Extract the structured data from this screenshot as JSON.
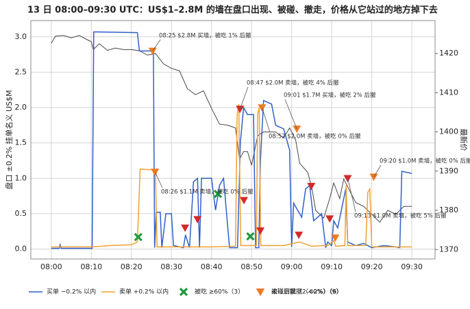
{
  "chart_data": {
    "type": "line",
    "title": "13 日 08:00–09:30 UTC：US$1–2.8M 的墙在盘口出现、被碰、撤走，价格从它站过的地方掉下去",
    "y_label": "盘口 ±0.2% 挂单名义 US$M",
    "y2_label": "最新价",
    "grid": true,
    "xlim": [
      -5.1,
      95.8
    ],
    "xticks": [
      {
        "value": 0,
        "label": "08:00"
      },
      {
        "value": 10,
        "label": "08:10"
      },
      {
        "value": 20,
        "label": "08:20"
      },
      {
        "value": 30,
        "label": "08:30"
      },
      {
        "value": 40,
        "label": "08:40"
      },
      {
        "value": 50,
        "label": "08:50"
      },
      {
        "value": 60,
        "label": "09:00"
      },
      {
        "value": 70,
        "label": "09:10"
      },
      {
        "value": 80,
        "label": "09:20"
      },
      {
        "value": 90,
        "label": "09:30"
      }
    ],
    "ylim": [
      -0.14,
      3.23
    ],
    "yticks": [
      {
        "value": 0,
        "label": "0.0"
      },
      {
        "value": 0.5,
        "label": "0.5"
      },
      {
        "value": 1,
        "label": "1.0"
      },
      {
        "value": 1.5,
        "label": "1.5"
      },
      {
        "value": 2,
        "label": "2.0"
      },
      {
        "value": 2.5,
        "label": "2.5"
      },
      {
        "value": 3,
        "label": "3.0"
      }
    ],
    "y2lim": [
      1367.6,
      1428.4
    ],
    "y2ticks": [
      1370,
      1380,
      1390,
      1400,
      1410,
      1420
    ],
    "series": [
      {
        "name": "买单 −0.2% 以内",
        "type": "line",
        "color": "#2f5fc8",
        "x": [
          0,
          2,
          2.2,
          2.5,
          10.2,
          10.6,
          21.5,
          22,
          25.5,
          25.8,
          26.2,
          27.2,
          27.6,
          28.6,
          30,
          30.5,
          33,
          33.5,
          34.5,
          35.5,
          36.5,
          37,
          37.5,
          40,
          41,
          42,
          43,
          44.5,
          46.5,
          47.2,
          48,
          49,
          50.5,
          51,
          51.8,
          52.2,
          53,
          55,
          56,
          58,
          59.5,
          60,
          60.5,
          61,
          62.5,
          63.5,
          64.5,
          65.5,
          67.5,
          68.5,
          69,
          70,
          70.5,
          71.5,
          73.5,
          74,
          76,
          78,
          80,
          83,
          86,
          87,
          87.5,
          90
        ],
        "values": [
          0.01,
          0.01,
          0.06,
          0.01,
          0.01,
          3.07,
          3.06,
          2.8,
          2.8,
          0.02,
          0.52,
          0.52,
          0.02,
          0.5,
          0.5,
          0.05,
          0.02,
          0.2,
          0.02,
          0.95,
          1.0,
          0.02,
          1.0,
          1.0,
          0.55,
          0.9,
          1.0,
          0.02,
          0.02,
          1.5,
          2.0,
          1.9,
          1.9,
          0.02,
          0.02,
          1.25,
          2.1,
          2.05,
          1.75,
          1.7,
          1.4,
          0.03,
          0.65,
          0.6,
          0.45,
          0.85,
          0.9,
          0.4,
          0.5,
          0.02,
          0.1,
          0.05,
          0.4,
          0.3,
          0.85,
          0.1,
          0.05,
          0.08,
          0.02,
          0.05,
          0.03,
          0.02,
          1.1,
          1.07
        ]
      },
      {
        "name": "卖单 +0.2% 以内",
        "type": "line",
        "color": "#f0a030",
        "x": [
          0,
          10,
          15,
          20,
          21.5,
          22.2,
          25.5,
          26,
          26.4,
          35,
          40,
          46,
          46.4,
          46.8,
          47.3,
          51.2,
          51.5,
          51.9,
          52.3,
          58,
          62,
          65,
          69,
          70.5,
          71,
          73.3,
          73.6,
          74,
          78.5,
          79,
          79.5,
          80,
          90
        ],
        "values": [
          0.03,
          0.03,
          0.05,
          0.06,
          0.1,
          1.13,
          1.12,
          1.08,
          0.03,
          0.03,
          0.03,
          0.04,
          1.9,
          2.05,
          0.05,
          0.05,
          1.9,
          2.0,
          0.05,
          0.05,
          0.1,
          0.04,
          0.05,
          0.12,
          0.04,
          0.05,
          0.9,
          0.05,
          0.05,
          0.8,
          0.85,
          0.03,
          0.03
        ]
      },
      {
        "name": "最新价",
        "type": "line",
        "color": "#444444",
        "axis": "y2",
        "x": [
          0,
          1,
          3,
          5,
          7,
          9,
          10,
          10.5,
          12,
          14,
          16,
          18,
          20,
          22,
          24,
          26,
          28,
          30,
          32,
          34,
          36,
          38,
          40,
          42,
          44,
          46,
          47,
          48,
          49,
          50,
          51.5,
          53,
          56,
          58,
          59.5,
          61,
          62,
          64,
          65,
          66,
          68,
          69.5,
          70.5,
          72,
          73,
          74,
          76,
          78,
          80,
          82,
          84,
          86,
          88,
          90
        ],
        "values": [
          1422.6,
          1424.4,
          1424.6,
          1424,
          1424.6,
          1423.5,
          1423,
          1421,
          1422.5,
          1420.8,
          1421.4,
          1421,
          1421,
          1420.7,
          1419.6,
          1420,
          1417.4,
          1416.2,
          1415.6,
          1411,
          1409.5,
          1410.5,
          1406,
          1402,
          1401.7,
          1401,
          1393,
          1395,
          1395,
          1391.5,
          1399,
          1400,
          1400,
          1398.5,
          1401,
          1398,
          1392,
          1389.7,
          1386,
          1380,
          1378,
          1383,
          1387,
          1383,
          1388,
          1386,
          1382,
          1381,
          1379,
          1377,
          1380,
          1379,
          1381,
          1381
        ]
      },
      {
        "name": "被吃 ≥60%（3）",
        "type": "scatter",
        "marker": "x",
        "color": "#1e9a3c",
        "x": [
          21.7,
          41.6,
          49.7
        ],
        "values": [
          0.17,
          0.78,
          0.18
        ]
      },
      {
        "name": "被碰后撤（2–60%）（9）",
        "type": "scatter",
        "marker": "triangle",
        "color": "#d42a2a",
        "x": [
          33.4,
          36.5,
          47.1,
          48.1,
          52.2,
          61.8,
          64.9,
          69.5,
          74
        ],
        "values": [
          0.3,
          0.42,
          1.98,
          0.69,
          0.26,
          0.2,
          0.89,
          0.43,
          1.0
        ]
      },
      {
        "name": "未碰到就撤（<2%）（6）",
        "type": "scatter",
        "marker": "triangle",
        "color": "#f07a20",
        "x": [
          25.3,
          25.9,
          52.6,
          61.3,
          70.9,
          80.5
        ],
        "values": [
          2.8,
          1.09,
          2.0,
          1.7,
          0.16,
          1.02
        ]
      }
    ],
    "annotations": [
      {
        "text": "08:25 $2.8M 买墙，被吃 1% 后撤",
        "x": 25.3,
        "y": 2.8
      },
      {
        "text": "08:26 $1.1M 卖墙，被吃 0% 后撤",
        "x": 25.9,
        "y": 1.09
      },
      {
        "text": "08:47 $2.0M 卖墙，被吃 4% 后撤",
        "x": 47.1,
        "y": 1.98
      },
      {
        "text": "09:01 $1.7M 买墙，被吃 2% 后撤",
        "x": 61.3,
        "y": 1.7
      },
      {
        "text": "08:52 $2.0M 卖墙，被吃 0% 后撤",
        "x": 52.6,
        "y": 2.0
      },
      {
        "text": "09:20 $1.0M 卖墙，被吃 0% 后撤",
        "x": 80.5,
        "y": 1.02
      },
      {
        "text": "09:13 $1.0M 卖墙，被吃 5% 后撤",
        "x": 74,
        "y": 1.0
      }
    ]
  }
}
